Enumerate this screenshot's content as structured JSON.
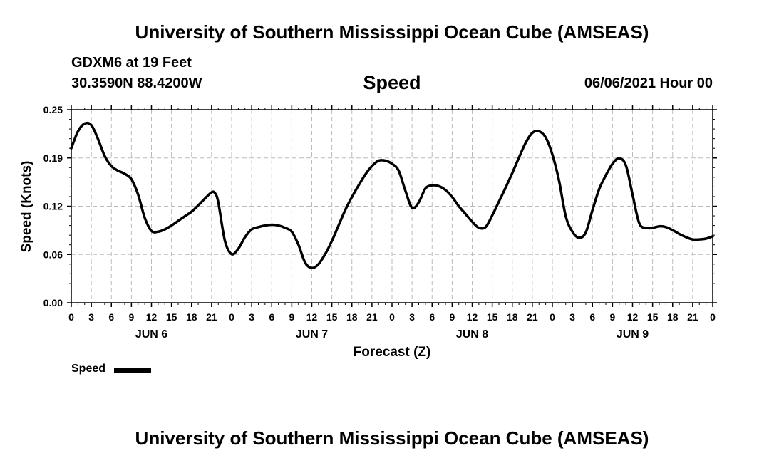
{
  "header": {
    "title": "University of Southern Mississippi Ocean Cube (AMSEAS)",
    "station": "GDXM6 at 19 Feet",
    "coordinates": "30.3590N  88.4200W",
    "datetime": "06/06/2021 Hour 00"
  },
  "footer": {
    "title": "University of Southern Mississippi Ocean Cube (AMSEAS)"
  },
  "legend": {
    "label": "Speed"
  },
  "colors": {
    "line": "#000000",
    "grid": "#bbbbbb"
  },
  "chart_data": {
    "type": "line",
    "title": "Speed",
    "xlabel": "Forecast (Z)",
    "ylabel": "Speed (Knots)",
    "xlim": [
      0,
      96
    ],
    "ylim": [
      0,
      0.25
    ],
    "yticks": [
      "0.00",
      "0.06",
      "0.12",
      "0.19",
      "0.25"
    ],
    "ytick_values": [
      0,
      0.0625,
      0.125,
      0.1875,
      0.25
    ],
    "xtick_labels": [
      "0",
      "3",
      "6",
      "9",
      "12",
      "15",
      "18",
      "21",
      "0",
      "3",
      "6",
      "9",
      "12",
      "15",
      "18",
      "21",
      "0",
      "3",
      "6",
      "9",
      "12",
      "15",
      "18",
      "21",
      "0",
      "3",
      "6",
      "9",
      "12",
      "15",
      "18",
      "21",
      "0"
    ],
    "day_labels": [
      {
        "label": "JUN 6",
        "hour": 12
      },
      {
        "label": "JUN 7",
        "hour": 36
      },
      {
        "label": "JUN 8",
        "hour": 60
      },
      {
        "label": "JUN 9",
        "hour": 84
      }
    ],
    "grid": true,
    "series": [
      {
        "name": "Speed",
        "x": [
          0,
          1,
          2,
          3,
          4,
          5,
          6,
          7,
          8,
          9,
          10,
          11,
          12,
          13,
          14,
          15,
          16,
          17,
          18,
          19,
          20,
          21,
          21.5,
          22,
          23,
          24,
          25,
          26,
          27,
          28,
          29,
          30,
          31,
          32,
          33,
          34,
          35,
          36,
          37,
          38,
          39,
          40,
          41,
          42,
          43,
          44,
          45,
          46,
          47,
          48,
          49,
          50,
          51,
          52,
          53,
          54,
          55,
          56,
          57,
          58,
          59,
          60,
          61,
          62,
          63,
          64,
          65,
          66,
          67,
          68,
          69,
          70,
          71,
          72,
          73,
          74,
          75,
          76,
          77,
          78,
          79,
          80,
          81,
          82,
          83,
          84,
          85,
          86,
          87,
          88,
          89,
          90,
          91,
          92,
          93,
          94,
          95,
          96
        ],
        "values": [
          0.2,
          0.222,
          0.232,
          0.23,
          0.212,
          0.19,
          0.177,
          0.171,
          0.167,
          0.16,
          0.14,
          0.11,
          0.093,
          0.092,
          0.095,
          0.1,
          0.106,
          0.112,
          0.118,
          0.126,
          0.135,
          0.143,
          0.142,
          0.13,
          0.08,
          0.063,
          0.07,
          0.085,
          0.095,
          0.098,
          0.1,
          0.101,
          0.1,
          0.097,
          0.092,
          0.075,
          0.052,
          0.045,
          0.05,
          0.063,
          0.08,
          0.1,
          0.12,
          0.137,
          0.152,
          0.166,
          0.177,
          0.184,
          0.184,
          0.18,
          0.171,
          0.145,
          0.123,
          0.13,
          0.148,
          0.152,
          0.151,
          0.146,
          0.137,
          0.125,
          0.115,
          0.105,
          0.097,
          0.098,
          0.113,
          0.131,
          0.149,
          0.168,
          0.188,
          0.207,
          0.22,
          0.222,
          0.214,
          0.192,
          0.158,
          0.112,
          0.092,
          0.084,
          0.091,
          0.12,
          0.147,
          0.165,
          0.18,
          0.187,
          0.178,
          0.14,
          0.103,
          0.097,
          0.097,
          0.099,
          0.098,
          0.094,
          0.089,
          0.085,
          0.082,
          0.082,
          0.083,
          0.086
        ]
      }
    ]
  }
}
